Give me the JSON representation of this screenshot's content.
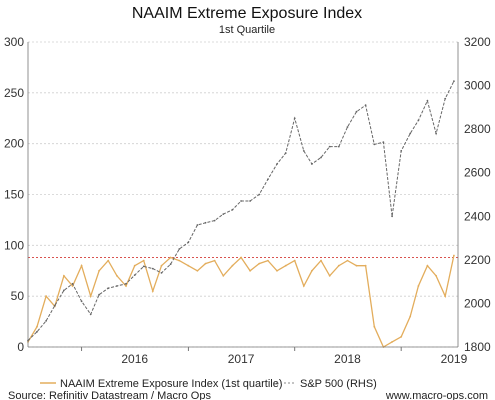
{
  "chart_data": {
    "type": "line",
    "title": "NAAIM Extreme Exposure Index",
    "subtitle": "1st Quartile",
    "x_axis": {
      "tick_labels": [
        "2016",
        "2017",
        "2018",
        "2019"
      ],
      "range": [
        "2015-07-01",
        "2019-07-15"
      ]
    },
    "y_left": {
      "ylim": [
        0,
        300
      ],
      "ticks": [
        0,
        50,
        100,
        150,
        200,
        250,
        300
      ]
    },
    "y_right": {
      "ylim": [
        1800,
        3200
      ],
      "ticks": [
        1800,
        2000,
        2200,
        2400,
        2600,
        2800,
        3000,
        3200
      ]
    },
    "grid": true,
    "reference_line": {
      "axis": "left",
      "value": 88,
      "color": "#d9534f",
      "style": "dotted"
    },
    "series": [
      {
        "name": "NAAIM Extreme Exposure Index (1st quartile)",
        "axis": "left",
        "color": "#e3ad5c",
        "x": [
          "2015-07-01",
          "2015-08-01",
          "2015-09-01",
          "2015-10-01",
          "2015-11-01",
          "2015-12-01",
          "2016-01-01",
          "2016-02-01",
          "2016-03-01",
          "2016-04-01",
          "2016-05-01",
          "2016-06-01",
          "2016-07-01",
          "2016-08-01",
          "2016-09-01",
          "2016-10-01",
          "2016-11-01",
          "2016-12-01",
          "2017-01-01",
          "2017-02-01",
          "2017-03-01",
          "2017-04-01",
          "2017-05-01",
          "2017-06-01",
          "2017-07-01",
          "2017-08-01",
          "2017-09-01",
          "2017-10-01",
          "2017-11-01",
          "2017-12-01",
          "2018-01-01",
          "2018-02-01",
          "2018-03-01",
          "2018-04-01",
          "2018-05-01",
          "2018-06-01",
          "2018-07-01",
          "2018-08-01",
          "2018-09-01",
          "2018-10-01",
          "2018-11-01",
          "2018-12-01",
          "2019-01-01",
          "2019-02-01",
          "2019-03-01",
          "2019-04-01",
          "2019-05-01",
          "2019-06-01",
          "2019-07-01"
        ],
        "values": [
          5,
          20,
          50,
          40,
          70,
          60,
          80,
          50,
          75,
          85,
          70,
          60,
          80,
          85,
          55,
          80,
          88,
          85,
          80,
          75,
          82,
          85,
          70,
          80,
          88,
          75,
          82,
          85,
          75,
          80,
          85,
          60,
          75,
          85,
          70,
          80,
          85,
          80,
          80,
          20,
          0,
          5,
          10,
          30,
          60,
          80,
          70,
          50,
          90
        ]
      },
      {
        "name": "S&P 500 (RHS)",
        "axis": "right",
        "color": "#666666",
        "x": [
          "2015-07-01",
          "2015-08-01",
          "2015-09-01",
          "2015-10-01",
          "2015-11-01",
          "2015-12-01",
          "2016-01-01",
          "2016-02-01",
          "2016-03-01",
          "2016-04-01",
          "2016-05-01",
          "2016-06-01",
          "2016-07-01",
          "2016-08-01",
          "2016-09-01",
          "2016-10-01",
          "2016-11-01",
          "2016-12-01",
          "2017-01-01",
          "2017-02-01",
          "2017-03-01",
          "2017-04-01",
          "2017-05-01",
          "2017-06-01",
          "2017-07-01",
          "2017-08-01",
          "2017-09-01",
          "2017-10-01",
          "2017-11-01",
          "2017-12-01",
          "2018-01-01",
          "2018-02-01",
          "2018-03-01",
          "2018-04-01",
          "2018-05-01",
          "2018-06-01",
          "2018-07-01",
          "2018-08-01",
          "2018-09-01",
          "2018-10-01",
          "2018-11-01",
          "2018-12-01",
          "2019-01-01",
          "2019-02-01",
          "2019-03-01",
          "2019-04-01",
          "2019-05-01",
          "2019-06-01",
          "2019-07-01"
        ],
        "values": [
          1830,
          1870,
          1920,
          1990,
          2060,
          2090,
          2010,
          1950,
          2040,
          2070,
          2080,
          2090,
          2130,
          2170,
          2160,
          2140,
          2180,
          2250,
          2280,
          2360,
          2370,
          2380,
          2410,
          2430,
          2470,
          2470,
          2500,
          2570,
          2640,
          2690,
          2850,
          2700,
          2640,
          2670,
          2720,
          2720,
          2810,
          2880,
          2910,
          2730,
          2740,
          2400,
          2700,
          2780,
          2840,
          2930,
          2780,
          2940,
          3020
        ]
      }
    ],
    "legend": {
      "position": "bottom",
      "entries": [
        "NAAIM Extreme Exposure Index (1st quartile)",
        "S&P 500 (RHS)"
      ]
    },
    "footer": {
      "source": "Source: Refinitiv Datastream / Macro Ops",
      "website": "www.macro-ops.com"
    }
  }
}
